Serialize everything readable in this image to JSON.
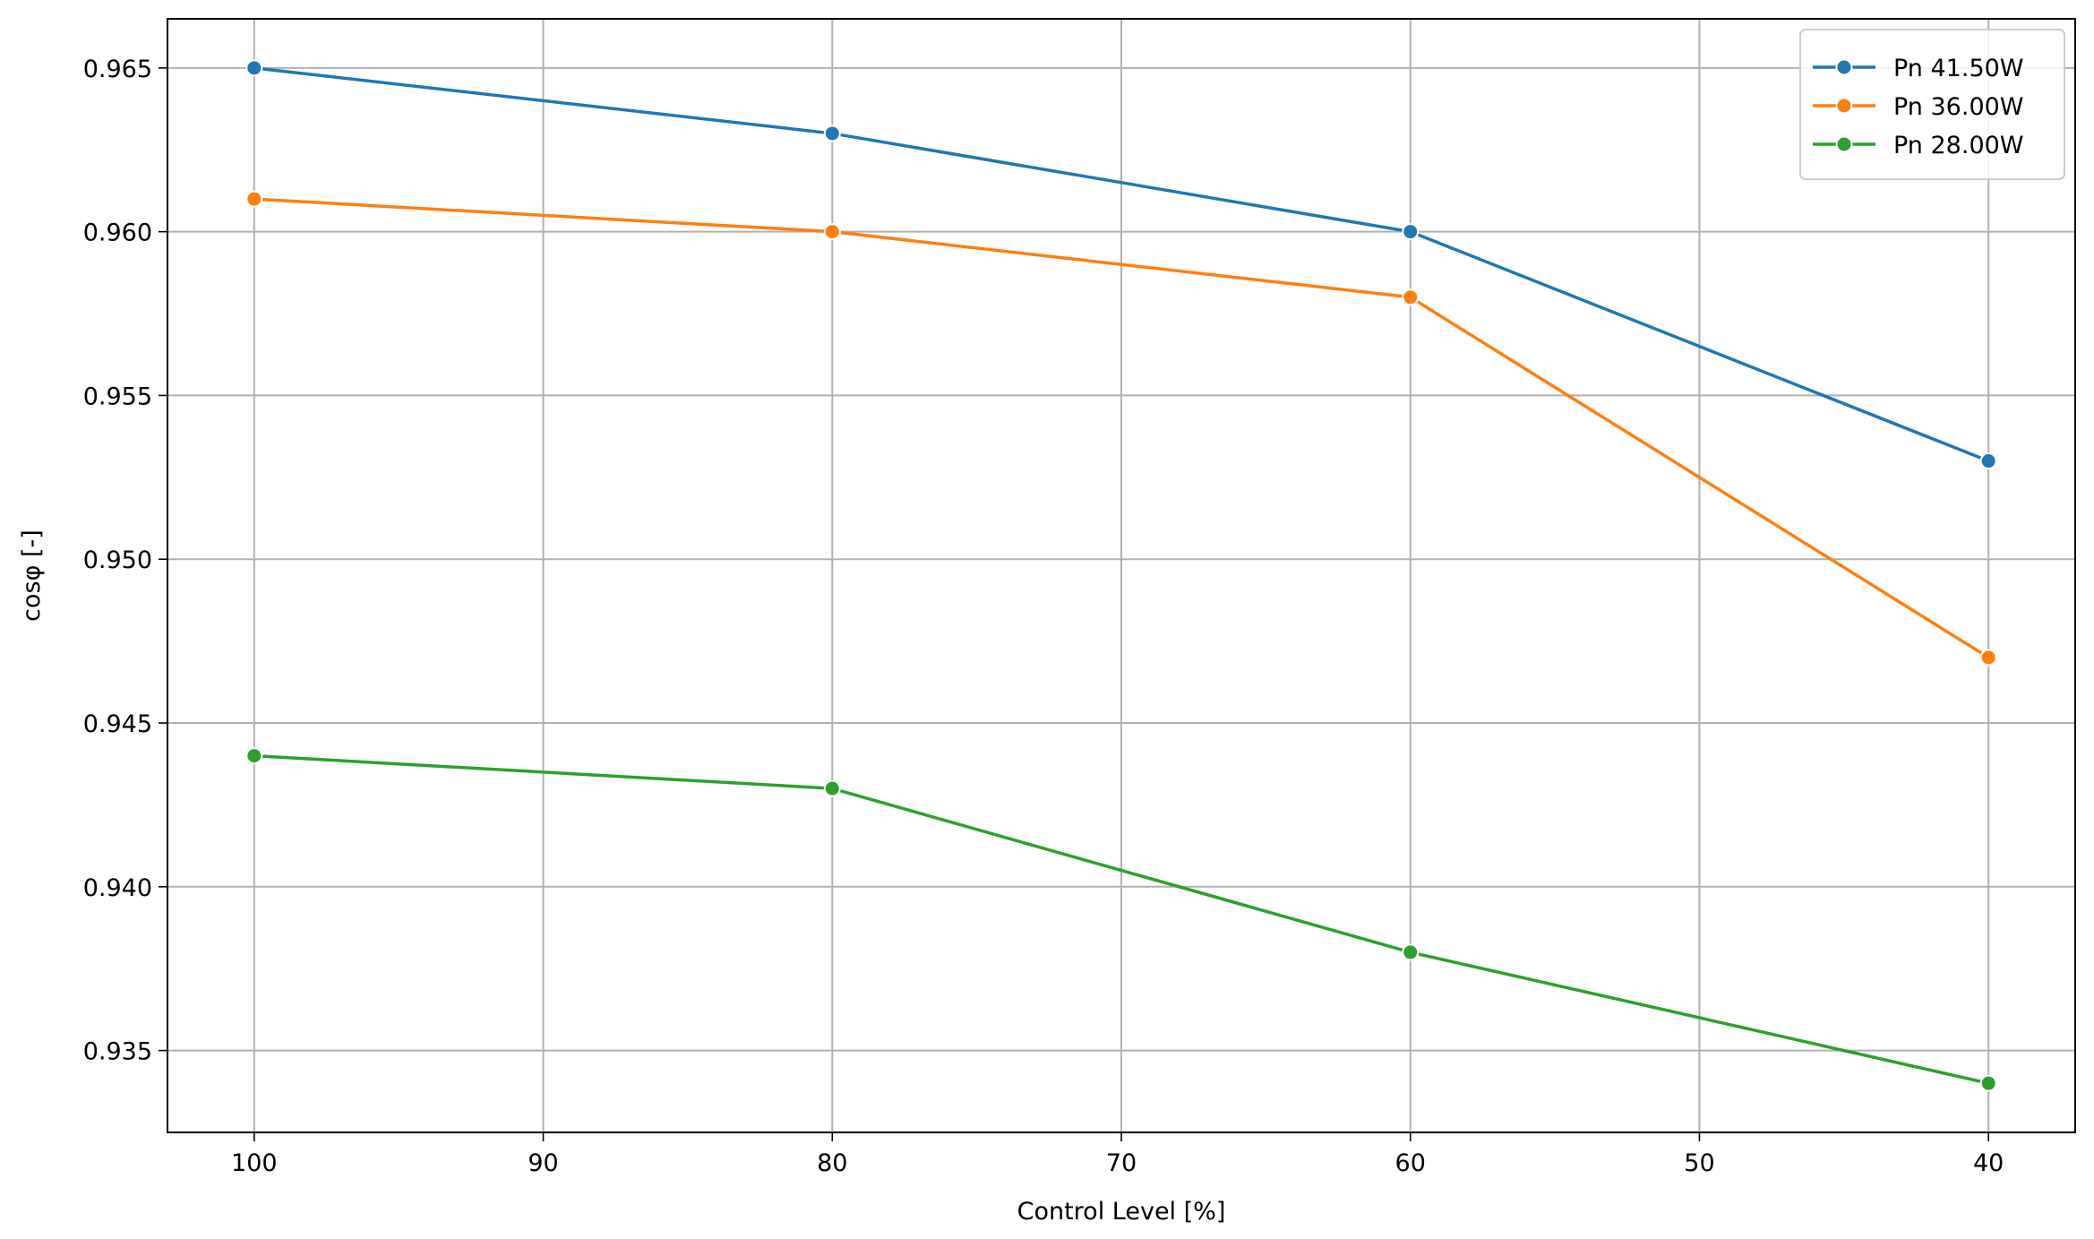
{
  "chart_data": {
    "type": "line",
    "title": "",
    "xlabel": "Control Level [%]",
    "ylabel": "cosφ [-]",
    "xlim": [
      103,
      37
    ],
    "ylim": [
      0.9325,
      0.9665
    ],
    "x_reversed": true,
    "xticks": [
      100,
      90,
      80,
      70,
      60,
      50,
      40
    ],
    "xtick_labels": [
      "100",
      "90",
      "80",
      "70",
      "60",
      "50",
      "40"
    ],
    "yticks": [
      0.935,
      0.94,
      0.945,
      0.95,
      0.955,
      0.96,
      0.965
    ],
    "ytick_labels": [
      "0.935",
      "0.940",
      "0.945",
      "0.950",
      "0.955",
      "0.960",
      "0.965"
    ],
    "grid": true,
    "legend_position": "top-right",
    "marker": "circle",
    "x": [
      100,
      80,
      60,
      40
    ],
    "series": [
      {
        "name": "Pn 41.50W",
        "color": "#1f77b4",
        "values": [
          0.965,
          0.963,
          0.96,
          0.953
        ]
      },
      {
        "name": "Pn 36.00W",
        "color": "#ff7f0e",
        "values": [
          0.961,
          0.96,
          0.958,
          0.947
        ]
      },
      {
        "name": "Pn 28.00W",
        "color": "#2ca02c",
        "values": [
          0.944,
          0.943,
          0.938,
          0.934
        ]
      }
    ]
  }
}
